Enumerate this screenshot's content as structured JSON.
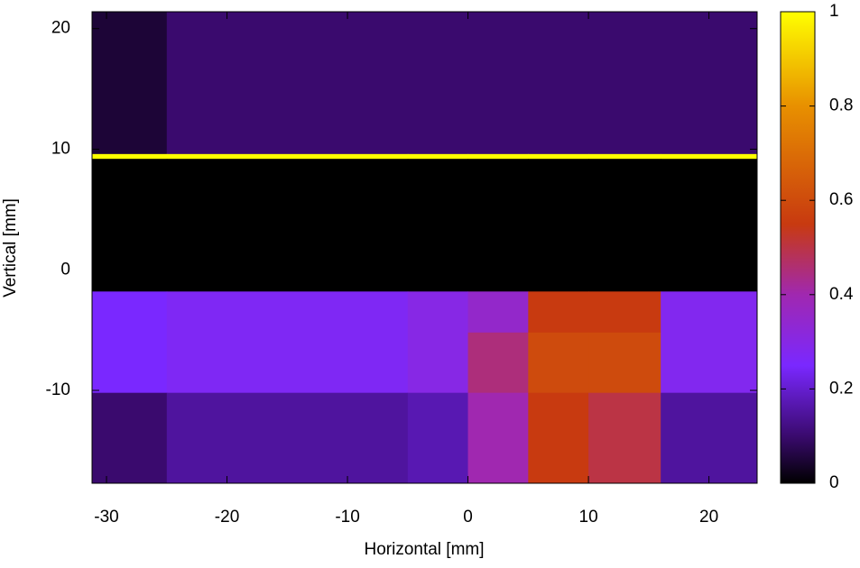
{
  "chart_data": {
    "type": "heatmap",
    "x_label": "Horizontal [mm]",
    "y_label": "Vertical [mm]",
    "xlim": [
      -31.2,
      24.0
    ],
    "ylim": [
      -17.7,
      21.4
    ],
    "xticks": [
      -30,
      -20,
      -10,
      0,
      10,
      20
    ],
    "yticks": [
      -10,
      0,
      10,
      20
    ],
    "x_edges": [
      -31.2,
      -25,
      -5,
      0,
      5,
      10,
      16,
      24.0
    ],
    "y_edges": [
      21.4,
      9.6,
      9.2,
      -1.8,
      -5.2,
      -10.2,
      -17.7
    ],
    "z": [
      [
        0.05,
        0.1,
        0.1,
        0.1,
        0.1,
        0.1,
        0.1
      ],
      [
        1,
        1,
        1,
        1,
        1,
        1,
        1
      ],
      [
        0,
        0,
        0,
        0,
        0,
        0,
        0
      ],
      [
        0.25,
        0.27,
        0.3,
        0.35,
        0.55,
        0.55,
        0.28
      ],
      [
        0.25,
        0.27,
        0.3,
        0.45,
        0.6,
        0.6,
        0.28
      ],
      [
        0.1,
        0.15,
        0.17,
        0.4,
        0.55,
        0.5,
        0.15
      ]
    ],
    "zlim": [
      0,
      1
    ],
    "zticks": [
      0,
      0.2,
      0.4,
      0.6,
      0.8,
      1
    ],
    "colormap": [
      {
        "value": 0,
        "color": "#000000"
      },
      {
        "value": 0.1,
        "color": "#3a0a6e"
      },
      {
        "value": 0.25,
        "color": "#7a28ff"
      },
      {
        "value": 0.4,
        "color": "#a028b0"
      },
      {
        "value": 0.55,
        "color": "#c83a10"
      },
      {
        "value": 0.8,
        "color": "#e89000"
      },
      {
        "value": 1,
        "color": "#ffff00"
      }
    ]
  }
}
